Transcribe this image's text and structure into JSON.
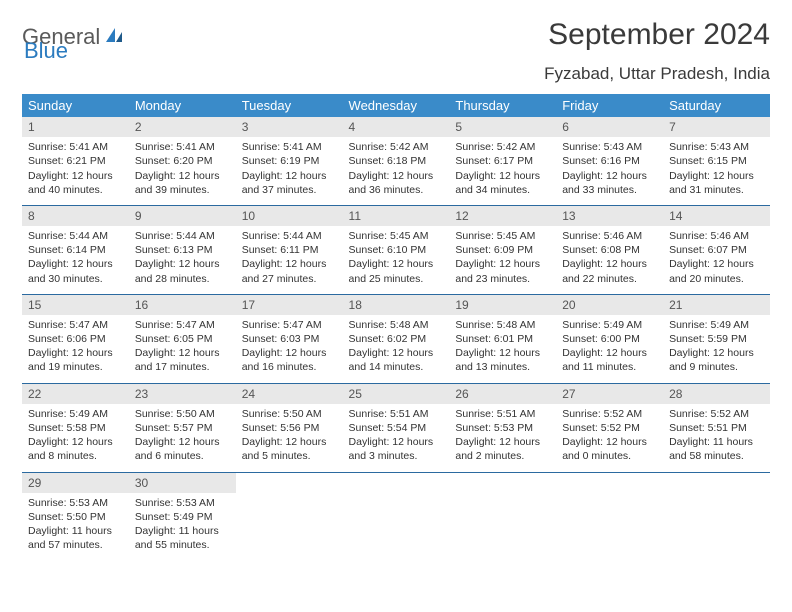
{
  "brand": {
    "word1": "General",
    "word2": "Blue"
  },
  "title": "September 2024",
  "location": "Fyzabad, Uttar Pradesh, India",
  "colors": {
    "header_bg": "#3a8bc9",
    "header_text": "#ffffff",
    "row_border": "#2b6aa0",
    "daynum_bg": "#e8e8e8",
    "body_text": "#333333",
    "logo_gray": "#5a5a5a",
    "logo_blue": "#2b7bbf"
  },
  "weekdays": [
    "Sunday",
    "Monday",
    "Tuesday",
    "Wednesday",
    "Thursday",
    "Friday",
    "Saturday"
  ],
  "weeks": [
    [
      {
        "n": "1",
        "sr": "Sunrise: 5:41 AM",
        "ss": "Sunset: 6:21 PM",
        "dl": "Daylight: 12 hours and 40 minutes."
      },
      {
        "n": "2",
        "sr": "Sunrise: 5:41 AM",
        "ss": "Sunset: 6:20 PM",
        "dl": "Daylight: 12 hours and 39 minutes."
      },
      {
        "n": "3",
        "sr": "Sunrise: 5:41 AM",
        "ss": "Sunset: 6:19 PM",
        "dl": "Daylight: 12 hours and 37 minutes."
      },
      {
        "n": "4",
        "sr": "Sunrise: 5:42 AM",
        "ss": "Sunset: 6:18 PM",
        "dl": "Daylight: 12 hours and 36 minutes."
      },
      {
        "n": "5",
        "sr": "Sunrise: 5:42 AM",
        "ss": "Sunset: 6:17 PM",
        "dl": "Daylight: 12 hours and 34 minutes."
      },
      {
        "n": "6",
        "sr": "Sunrise: 5:43 AM",
        "ss": "Sunset: 6:16 PM",
        "dl": "Daylight: 12 hours and 33 minutes."
      },
      {
        "n": "7",
        "sr": "Sunrise: 5:43 AM",
        "ss": "Sunset: 6:15 PM",
        "dl": "Daylight: 12 hours and 31 minutes."
      }
    ],
    [
      {
        "n": "8",
        "sr": "Sunrise: 5:44 AM",
        "ss": "Sunset: 6:14 PM",
        "dl": "Daylight: 12 hours and 30 minutes."
      },
      {
        "n": "9",
        "sr": "Sunrise: 5:44 AM",
        "ss": "Sunset: 6:13 PM",
        "dl": "Daylight: 12 hours and 28 minutes."
      },
      {
        "n": "10",
        "sr": "Sunrise: 5:44 AM",
        "ss": "Sunset: 6:11 PM",
        "dl": "Daylight: 12 hours and 27 minutes."
      },
      {
        "n": "11",
        "sr": "Sunrise: 5:45 AM",
        "ss": "Sunset: 6:10 PM",
        "dl": "Daylight: 12 hours and 25 minutes."
      },
      {
        "n": "12",
        "sr": "Sunrise: 5:45 AM",
        "ss": "Sunset: 6:09 PM",
        "dl": "Daylight: 12 hours and 23 minutes."
      },
      {
        "n": "13",
        "sr": "Sunrise: 5:46 AM",
        "ss": "Sunset: 6:08 PM",
        "dl": "Daylight: 12 hours and 22 minutes."
      },
      {
        "n": "14",
        "sr": "Sunrise: 5:46 AM",
        "ss": "Sunset: 6:07 PM",
        "dl": "Daylight: 12 hours and 20 minutes."
      }
    ],
    [
      {
        "n": "15",
        "sr": "Sunrise: 5:47 AM",
        "ss": "Sunset: 6:06 PM",
        "dl": "Daylight: 12 hours and 19 minutes."
      },
      {
        "n": "16",
        "sr": "Sunrise: 5:47 AM",
        "ss": "Sunset: 6:05 PM",
        "dl": "Daylight: 12 hours and 17 minutes."
      },
      {
        "n": "17",
        "sr": "Sunrise: 5:47 AM",
        "ss": "Sunset: 6:03 PM",
        "dl": "Daylight: 12 hours and 16 minutes."
      },
      {
        "n": "18",
        "sr": "Sunrise: 5:48 AM",
        "ss": "Sunset: 6:02 PM",
        "dl": "Daylight: 12 hours and 14 minutes."
      },
      {
        "n": "19",
        "sr": "Sunrise: 5:48 AM",
        "ss": "Sunset: 6:01 PM",
        "dl": "Daylight: 12 hours and 13 minutes."
      },
      {
        "n": "20",
        "sr": "Sunrise: 5:49 AM",
        "ss": "Sunset: 6:00 PM",
        "dl": "Daylight: 12 hours and 11 minutes."
      },
      {
        "n": "21",
        "sr": "Sunrise: 5:49 AM",
        "ss": "Sunset: 5:59 PM",
        "dl": "Daylight: 12 hours and 9 minutes."
      }
    ],
    [
      {
        "n": "22",
        "sr": "Sunrise: 5:49 AM",
        "ss": "Sunset: 5:58 PM",
        "dl": "Daylight: 12 hours and 8 minutes."
      },
      {
        "n": "23",
        "sr": "Sunrise: 5:50 AM",
        "ss": "Sunset: 5:57 PM",
        "dl": "Daylight: 12 hours and 6 minutes."
      },
      {
        "n": "24",
        "sr": "Sunrise: 5:50 AM",
        "ss": "Sunset: 5:56 PM",
        "dl": "Daylight: 12 hours and 5 minutes."
      },
      {
        "n": "25",
        "sr": "Sunrise: 5:51 AM",
        "ss": "Sunset: 5:54 PM",
        "dl": "Daylight: 12 hours and 3 minutes."
      },
      {
        "n": "26",
        "sr": "Sunrise: 5:51 AM",
        "ss": "Sunset: 5:53 PM",
        "dl": "Daylight: 12 hours and 2 minutes."
      },
      {
        "n": "27",
        "sr": "Sunrise: 5:52 AM",
        "ss": "Sunset: 5:52 PM",
        "dl": "Daylight: 12 hours and 0 minutes."
      },
      {
        "n": "28",
        "sr": "Sunrise: 5:52 AM",
        "ss": "Sunset: 5:51 PM",
        "dl": "Daylight: 11 hours and 58 minutes."
      }
    ],
    [
      {
        "n": "29",
        "sr": "Sunrise: 5:53 AM",
        "ss": "Sunset: 5:50 PM",
        "dl": "Daylight: 11 hours and 57 minutes."
      },
      {
        "n": "30",
        "sr": "Sunrise: 5:53 AM",
        "ss": "Sunset: 5:49 PM",
        "dl": "Daylight: 11 hours and 55 minutes."
      },
      null,
      null,
      null,
      null,
      null
    ]
  ]
}
